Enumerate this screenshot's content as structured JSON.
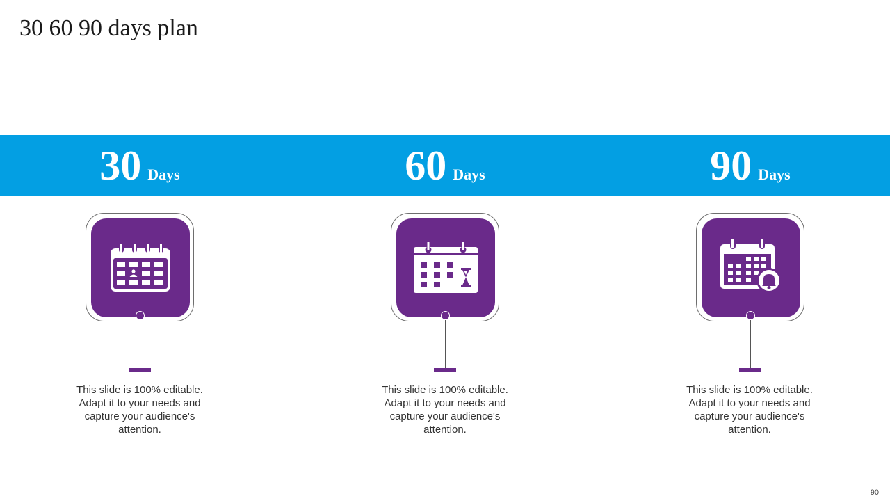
{
  "title": "30 60 90 days plan",
  "colors": {
    "band": "#039fe3",
    "accent": "#6a2a8a"
  },
  "columns": [
    {
      "number": "30",
      "unit": "Days",
      "icon": "calendar-person-icon",
      "description": "This slide is 100% editable. Adapt it to your needs and capture your audience's attention."
    },
    {
      "number": "60",
      "unit": "Days",
      "icon": "calendar-hourglass-icon",
      "description": "This slide is 100% editable. Adapt it to your needs and capture your audience's attention."
    },
    {
      "number": "90",
      "unit": "Days",
      "icon": "calendar-bell-icon",
      "description": "This slide is 100% editable. Adapt it to your needs and capture your audience's attention."
    }
  ],
  "page_number": "90"
}
